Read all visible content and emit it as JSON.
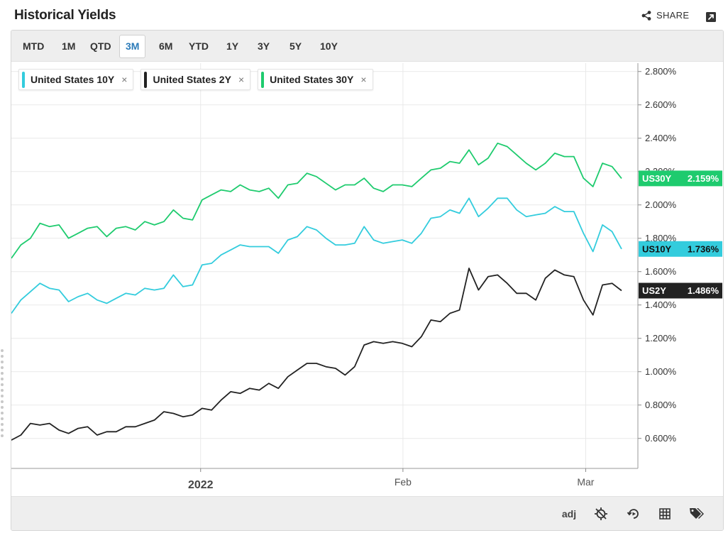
{
  "header": {
    "title": "Historical Yields",
    "share_label": "SHARE",
    "share_icon": "share-icon",
    "popout_icon": "popout-icon"
  },
  "ranges": [
    {
      "label": "MTD",
      "active": false
    },
    {
      "label": "1M",
      "active": false
    },
    {
      "label": "QTD",
      "active": false
    },
    {
      "label": "3M",
      "active": true
    },
    {
      "label": "6M",
      "active": false
    },
    {
      "label": "YTD",
      "active": false
    },
    {
      "label": "1Y",
      "active": false
    },
    {
      "label": "3Y",
      "active": false
    },
    {
      "label": "5Y",
      "active": false
    },
    {
      "label": "10Y",
      "active": false
    }
  ],
  "chips": [
    {
      "label": "United States 10Y",
      "color": "#33ccdd",
      "close": "×"
    },
    {
      "label": "United States 2Y",
      "color": "#222222",
      "close": "×"
    },
    {
      "label": "United States 30Y",
      "color": "#1ecb6e",
      "close": "×"
    }
  ],
  "footer": {
    "adj_label": "adj",
    "icons": [
      "crosshair-off-icon",
      "replay-icon",
      "grid-icon",
      "tags-icon"
    ]
  },
  "chart_data": {
    "type": "line",
    "ylim": [
      0.42,
      2.85
    ],
    "yticks": [
      0.6,
      0.8,
      1.0,
      1.2,
      1.4,
      1.6,
      1.8,
      2.0,
      2.2,
      2.4,
      2.6,
      2.8
    ],
    "ytick_labels": [
      "0.600%",
      "0.800%",
      "1.000%",
      "1.200%",
      "1.400%",
      "1.600%",
      "1.800%",
      "2.000%",
      "2.200%",
      "2.400%",
      "2.600%",
      "2.800%"
    ],
    "y_axis_side": "right",
    "grid": true,
    "x_range": [
      "2021-12-03",
      "2022-03-09"
    ],
    "xticks": [
      {
        "date": "2022-01-01",
        "label": "2022",
        "major": true
      },
      {
        "date": "2022-02-01",
        "label": "Feb",
        "major": false
      },
      {
        "date": "2022-03-01",
        "label": "Mar",
        "major": false
      }
    ],
    "series": [
      {
        "name": "United States 30Y",
        "color": "#1ecb6e",
        "tag": "US30Y",
        "last_label": "2.159%",
        "values": [
          1.68,
          1.76,
          1.8,
          1.89,
          1.87,
          1.88,
          1.8,
          1.83,
          1.86,
          1.87,
          1.81,
          1.86,
          1.87,
          1.85,
          1.9,
          1.88,
          1.9,
          1.97,
          1.92,
          1.91,
          2.03,
          2.06,
          2.09,
          2.08,
          2.12,
          2.09,
          2.08,
          2.1,
          2.04,
          2.12,
          2.13,
          2.19,
          2.17,
          2.13,
          2.09,
          2.12,
          2.12,
          2.16,
          2.1,
          2.08,
          2.12,
          2.12,
          2.11,
          2.16,
          2.21,
          2.22,
          2.26,
          2.25,
          2.33,
          2.24,
          2.28,
          2.37,
          2.35,
          2.3,
          2.25,
          2.21,
          2.25,
          2.31,
          2.29,
          2.29,
          2.16,
          2.11,
          2.25,
          2.23,
          2.159
        ]
      },
      {
        "name": "United States 10Y",
        "color": "#33ccdd",
        "tag": "US10Y",
        "last_label": "1.736%",
        "values": [
          1.35,
          1.43,
          1.48,
          1.53,
          1.5,
          1.49,
          1.42,
          1.45,
          1.47,
          1.43,
          1.41,
          1.44,
          1.47,
          1.46,
          1.5,
          1.49,
          1.5,
          1.58,
          1.51,
          1.52,
          1.64,
          1.65,
          1.7,
          1.73,
          1.76,
          1.75,
          1.75,
          1.75,
          1.71,
          1.79,
          1.81,
          1.87,
          1.85,
          1.8,
          1.76,
          1.76,
          1.77,
          1.87,
          1.79,
          1.77,
          1.78,
          1.79,
          1.77,
          1.83,
          1.92,
          1.93,
          1.97,
          1.95,
          2.04,
          1.93,
          1.98,
          2.04,
          2.04,
          1.97,
          1.93,
          1.94,
          1.95,
          1.99,
          1.96,
          1.96,
          1.83,
          1.72,
          1.88,
          1.84,
          1.736
        ]
      },
      {
        "name": "United States 2Y",
        "color": "#222222",
        "tag": "US2Y",
        "last_label": "1.486%",
        "values": [
          0.59,
          0.62,
          0.69,
          0.68,
          0.69,
          0.65,
          0.63,
          0.66,
          0.67,
          0.62,
          0.64,
          0.64,
          0.67,
          0.67,
          0.69,
          0.71,
          0.76,
          0.75,
          0.73,
          0.74,
          0.78,
          0.77,
          0.83,
          0.88,
          0.87,
          0.9,
          0.89,
          0.93,
          0.9,
          0.97,
          1.01,
          1.05,
          1.05,
          1.03,
          1.02,
          0.98,
          1.03,
          1.16,
          1.18,
          1.17,
          1.18,
          1.17,
          1.15,
          1.21,
          1.31,
          1.3,
          1.35,
          1.37,
          1.62,
          1.49,
          1.57,
          1.58,
          1.53,
          1.47,
          1.47,
          1.43,
          1.56,
          1.61,
          1.58,
          1.57,
          1.43,
          1.34,
          1.52,
          1.53,
          1.486
        ]
      }
    ]
  }
}
